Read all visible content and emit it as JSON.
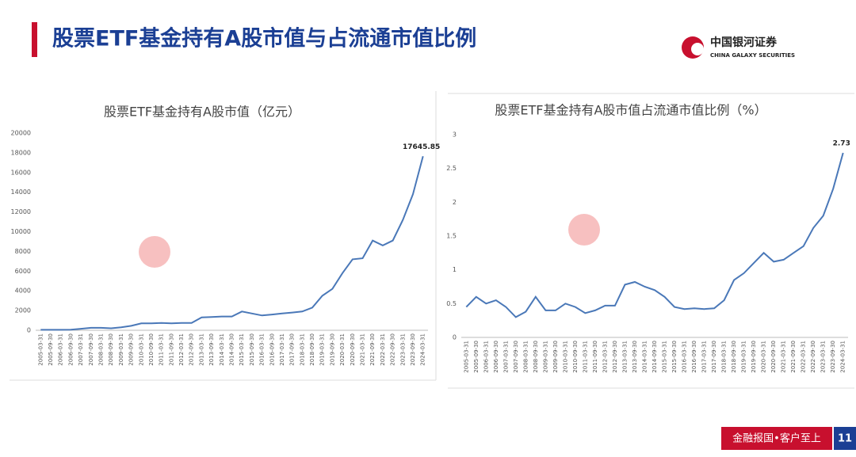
{
  "header": {
    "title": "股票ETF基金持有A股市值与占流通市值比例",
    "logo_cn": "中国银河证券",
    "logo_en": "CHINA GALAXY SECURITIES"
  },
  "chart_data": [
    {
      "type": "line",
      "title": "股票ETF基金持有A股市值（亿元）",
      "color": "#4a78b8",
      "categories": [
        "2005-03-31",
        "2005-09-30",
        "2006-03-31",
        "2006-09-30",
        "2007-03-31",
        "2007-09-30",
        "2008-03-31",
        "2008-09-30",
        "2009-03-31",
        "2009-09-30",
        "2010-03-31",
        "2010-09-30",
        "2011-03-31",
        "2011-09-30",
        "2012-03-31",
        "2012-09-30",
        "2013-03-31",
        "2013-09-30",
        "2014-03-31",
        "2014-09-30",
        "2015-03-31",
        "2015-09-30",
        "2016-03-31",
        "2016-09-30",
        "2017-03-31",
        "2017-09-30",
        "2018-03-31",
        "2018-09-30",
        "2019-03-31",
        "2019-09-30",
        "2020-03-31",
        "2020-09-30",
        "2021-03-31",
        "2021-09-30",
        "2022-03-31",
        "2022-09-30",
        "2023-03-31",
        "2023-09-30",
        "2024-03-31"
      ],
      "values": [
        50,
        50,
        50,
        60,
        150,
        250,
        250,
        200,
        300,
        450,
        700,
        700,
        750,
        700,
        750,
        750,
        1300,
        1350,
        1400,
        1400,
        1900,
        1700,
        1500,
        1600,
        1700,
        1800,
        1900,
        2300,
        3500,
        4200,
        5800,
        7200,
        7300,
        9100,
        8600,
        9100,
        11200,
        13800,
        17645.85
      ],
      "ylim": [
        0,
        20000
      ],
      "yticks": [
        0,
        2000,
        4000,
        6000,
        8000,
        10000,
        12000,
        14000,
        16000,
        18000,
        20000
      ],
      "grid": false
    },
    {
      "type": "line",
      "title": "股票ETF基金持有A股市值占流通市值比例（%）",
      "color": "#4a78b8",
      "categories": [
        "2005-03-31",
        "2005-09-30",
        "2006-03-31",
        "2006-09-30",
        "2007-03-31",
        "2007-09-30",
        "2008-03-31",
        "2008-09-30",
        "2009-03-31",
        "2009-09-30",
        "2010-03-31",
        "2010-09-30",
        "2011-03-31",
        "2011-09-30",
        "2012-03-31",
        "2012-09-30",
        "2013-03-31",
        "2013-09-30",
        "2014-03-31",
        "2014-09-30",
        "2015-03-31",
        "2015-09-30",
        "2016-03-31",
        "2016-09-30",
        "2017-03-31",
        "2017-09-30",
        "2018-03-31",
        "2018-09-30",
        "2019-03-31",
        "2019-09-30",
        "2020-03-31",
        "2020-09-30",
        "2021-03-31",
        "2021-09-30",
        "2022-03-31",
        "2022-09-30",
        "2023-03-31",
        "2023-09-30",
        "2024-03-31"
      ],
      "values": [
        0.45,
        0.6,
        0.5,
        0.55,
        0.45,
        0.3,
        0.38,
        0.6,
        0.4,
        0.4,
        0.5,
        0.45,
        0.36,
        0.4,
        0.47,
        0.47,
        0.78,
        0.82,
        0.75,
        0.7,
        0.6,
        0.45,
        0.42,
        0.43,
        0.42,
        0.43,
        0.55,
        0.85,
        0.95,
        1.1,
        1.25,
        1.12,
        1.15,
        1.25,
        1.35,
        1.62,
        1.8,
        2.2,
        2.73
      ],
      "ylim": [
        0,
        3
      ],
      "yticks": [
        0,
        0.5,
        1,
        1.5,
        2,
        2.5,
        3
      ],
      "grid": false
    }
  ],
  "footer": {
    "slogan": "金融报国•客户至上",
    "page": "11"
  }
}
